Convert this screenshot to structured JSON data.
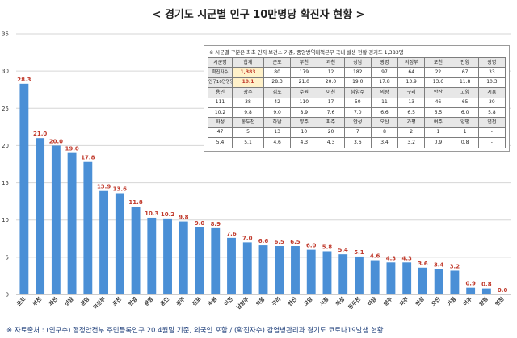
{
  "title": "< 경기도 시군별 인구 10만명당 확진자 현황 >",
  "footer": "※ 자료출처 : (인구수) 행정안전부 주민등록인구 20.4월말 기준, 외국인 포함 / (확진자수) 감염병관리과 경기도 코로나19발생 현황",
  "colors": {
    "bar": "#4a8fd6",
    "label": "#c0392b",
    "grid": "#d6d6d6"
  },
  "chart_data": {
    "type": "bar",
    "categories": [
      "군포",
      "부천",
      "과천",
      "성남",
      "광명",
      "의정부",
      "포천",
      "안양",
      "광명",
      "용인",
      "광주",
      "김포",
      "수원",
      "이천",
      "남양주",
      "의왕",
      "구리",
      "안산",
      "고양",
      "시흥",
      "화성",
      "동두천",
      "하남",
      "양주",
      "파주",
      "안성",
      "오산",
      "가평",
      "여주",
      "양평",
      "연천"
    ],
    "values": [
      28.3,
      21.0,
      20.0,
      19.0,
      17.8,
      13.9,
      13.6,
      11.8,
      10.3,
      10.2,
      9.8,
      9.0,
      8.9,
      7.6,
      7.0,
      6.6,
      6.5,
      6.5,
      6.0,
      5.8,
      5.4,
      5.1,
      4.6,
      4.3,
      4.3,
      3.6,
      3.4,
      3.2,
      0.9,
      0.8,
      0.0
    ],
    "value_labels": [
      "28.3",
      "21.0",
      "20.0",
      "19.0",
      "17.8",
      "13.9",
      "13.6",
      "11.8",
      "10.3",
      "10.2",
      "9.8",
      "9.0",
      "8.9",
      "7.6",
      "7.0",
      "6.6",
      "6.5",
      "6.5",
      "6.0",
      "5.8",
      "5.4",
      "5.1",
      "4.6",
      "4.3",
      "4.3",
      "3.6",
      "3.4",
      "3.2",
      "0.9",
      "0.8",
      "0.0"
    ],
    "y_ticks": [
      "0",
      "5",
      "10",
      "15",
      "20",
      "25",
      "30",
      "35"
    ],
    "ylim": [
      0,
      35
    ],
    "grid": true,
    "legend": false
  },
  "table": {
    "note": "※ 시군별 구분은 최초 인지 보건소 기준, 중앙방역대책본부 국내 발생 현황 경기도 1,383명",
    "blocks": [
      {
        "header": [
          "시군명",
          "합계",
          "군포",
          "부천",
          "과천",
          "성남",
          "광명",
          "의정부",
          "포천",
          "안양",
          "광명"
        ],
        "cases": [
          "확진자수",
          "1,383",
          "80",
          "179",
          "12",
          "182",
          "97",
          "64",
          "22",
          "67",
          "33"
        ],
        "rate": [
          "인구10만명당",
          "10.1",
          "28.3",
          "21.0",
          "20.0",
          "19.0",
          "17.8",
          "13.9",
          "13.6",
          "11.8",
          "10.3"
        ]
      },
      {
        "header": [
          "용인",
          "광주",
          "김포",
          "수원",
          "이천",
          "남양주",
          "의왕",
          "구리",
          "안산",
          "고양",
          "시흥"
        ],
        "cases": [
          "111",
          "38",
          "42",
          "110",
          "17",
          "50",
          "11",
          "13",
          "46",
          "65",
          "30"
        ],
        "rate": [
          "10.2",
          "9.8",
          "9.0",
          "8.9",
          "7.6",
          "7.0",
          "6.6",
          "6.5",
          "6.5",
          "6.0",
          "5.8"
        ]
      },
      {
        "header": [
          "화성",
          "동두천",
          "하남",
          "양주",
          "파주",
          "안성",
          "오산",
          "가평",
          "여주",
          "양평",
          "연천"
        ],
        "cases": [
          "47",
          "5",
          "13",
          "10",
          "20",
          "7",
          "8",
          "2",
          "1",
          "1",
          "-"
        ],
        "rate": [
          "5.4",
          "5.1",
          "4.6",
          "4.3",
          "4.3",
          "3.6",
          "3.4",
          "3.2",
          "0.9",
          "0.8",
          "-"
        ]
      }
    ]
  }
}
